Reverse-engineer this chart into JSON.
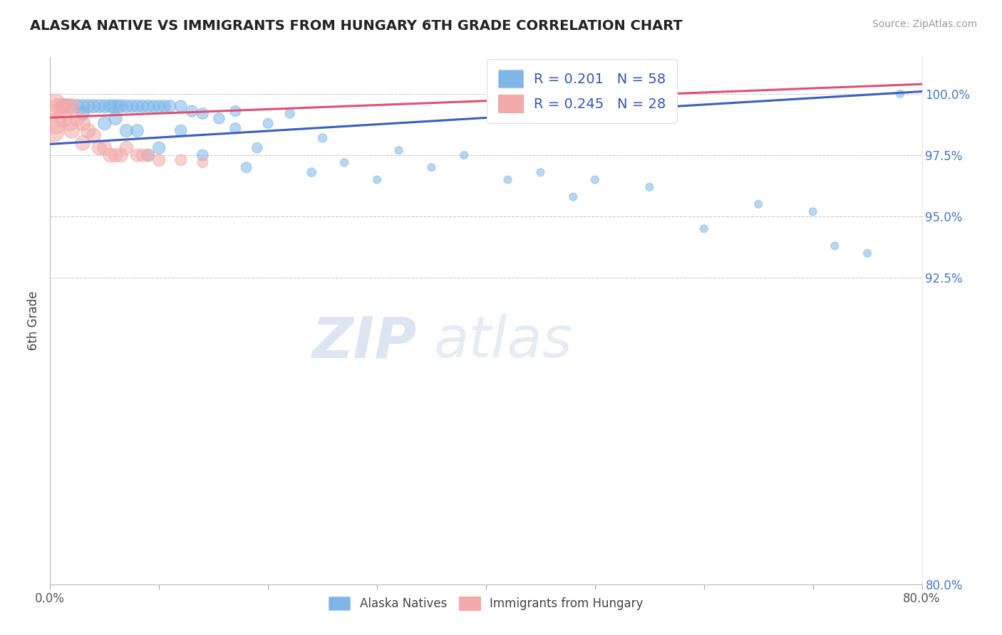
{
  "title": "ALASKA NATIVE VS IMMIGRANTS FROM HUNGARY 6TH GRADE CORRELATION CHART",
  "source": "Source: ZipAtlas.com",
  "ylabel": "6th Grade",
  "xlim": [
    0.0,
    80.0
  ],
  "ylim": [
    80.0,
    101.5
  ],
  "yticks_right": [
    100.0,
    97.5,
    95.0,
    92.5
  ],
  "ytick_bottom": 80.0,
  "grid_lines": [
    100.0,
    97.5,
    95.0,
    92.5
  ],
  "legend1_text": "R = 0.201   N = 58",
  "legend2_text": "R = 0.245   N = 28",
  "blue_color": "#7EB6E8",
  "pink_color": "#F4AAAA",
  "trendline_blue": "#3B5FC0",
  "trendline_pink": "#E05070",
  "watermark_zip": "ZIP",
  "watermark_atlas": "atlas",
  "blue_x": [
    1.2,
    1.8,
    2.5,
    3.0,
    3.5,
    4.0,
    4.5,
    5.0,
    5.5,
    5.8,
    6.2,
    6.5,
    7.0,
    7.5,
    8.0,
    8.5,
    9.0,
    9.5,
    10.0,
    10.5,
    11.0,
    12.0,
    13.0,
    14.0,
    15.5,
    17.0,
    20.0,
    22.0,
    25.0,
    8.0,
    12.0,
    17.0,
    32.0,
    38.0,
    45.0,
    50.0,
    65.0,
    70.0,
    78.0,
    5.0,
    7.0,
    10.0,
    14.0,
    19.0,
    27.0,
    35.0,
    42.0,
    55.0,
    60.0,
    72.0,
    3.0,
    6.0,
    9.0,
    18.0,
    24.0,
    30.0,
    48.0,
    75.0
  ],
  "blue_y": [
    99.5,
    99.5,
    99.5,
    99.5,
    99.5,
    99.5,
    99.5,
    99.5,
    99.5,
    99.5,
    99.5,
    99.5,
    99.5,
    99.5,
    99.5,
    99.5,
    99.5,
    99.5,
    99.5,
    99.5,
    99.5,
    99.5,
    99.3,
    99.2,
    99.0,
    99.3,
    98.8,
    99.2,
    98.2,
    98.5,
    98.5,
    98.6,
    97.7,
    97.5,
    96.8,
    96.5,
    95.5,
    95.2,
    100.0,
    98.8,
    98.5,
    97.8,
    97.5,
    97.8,
    97.2,
    97.0,
    96.5,
    96.2,
    94.5,
    93.8,
    99.2,
    99.0,
    97.5,
    97.0,
    96.8,
    96.5,
    95.8,
    93.5
  ],
  "pink_x": [
    0.4,
    0.7,
    1.0,
    1.3,
    1.6,
    2.0,
    2.5,
    3.0,
    3.5,
    4.0,
    5.0,
    6.0,
    7.0,
    8.0,
    9.0,
    0.5,
    1.2,
    2.0,
    3.0,
    4.5,
    5.5,
    6.5,
    8.5,
    10.0,
    12.0,
    14.0,
    0.3,
    1.8
  ],
  "pink_y": [
    99.5,
    99.5,
    99.5,
    99.5,
    99.5,
    99.5,
    99.0,
    98.8,
    98.5,
    98.3,
    97.8,
    97.5,
    97.8,
    97.5,
    97.5,
    98.8,
    99.0,
    98.5,
    98.0,
    97.8,
    97.5,
    97.5,
    97.5,
    97.3,
    97.3,
    97.2,
    98.5,
    98.8
  ],
  "blue_trendline": [
    [
      -2,
      97.9
    ],
    [
      80,
      100.1
    ]
  ],
  "pink_trendline": [
    [
      -2,
      99.0
    ],
    [
      80,
      100.4
    ]
  ],
  "xticks": [
    0,
    10,
    20,
    30,
    40,
    50,
    60,
    70,
    80
  ],
  "bottom_legend": [
    "Alaska Natives",
    "Immigrants from Hungary"
  ]
}
